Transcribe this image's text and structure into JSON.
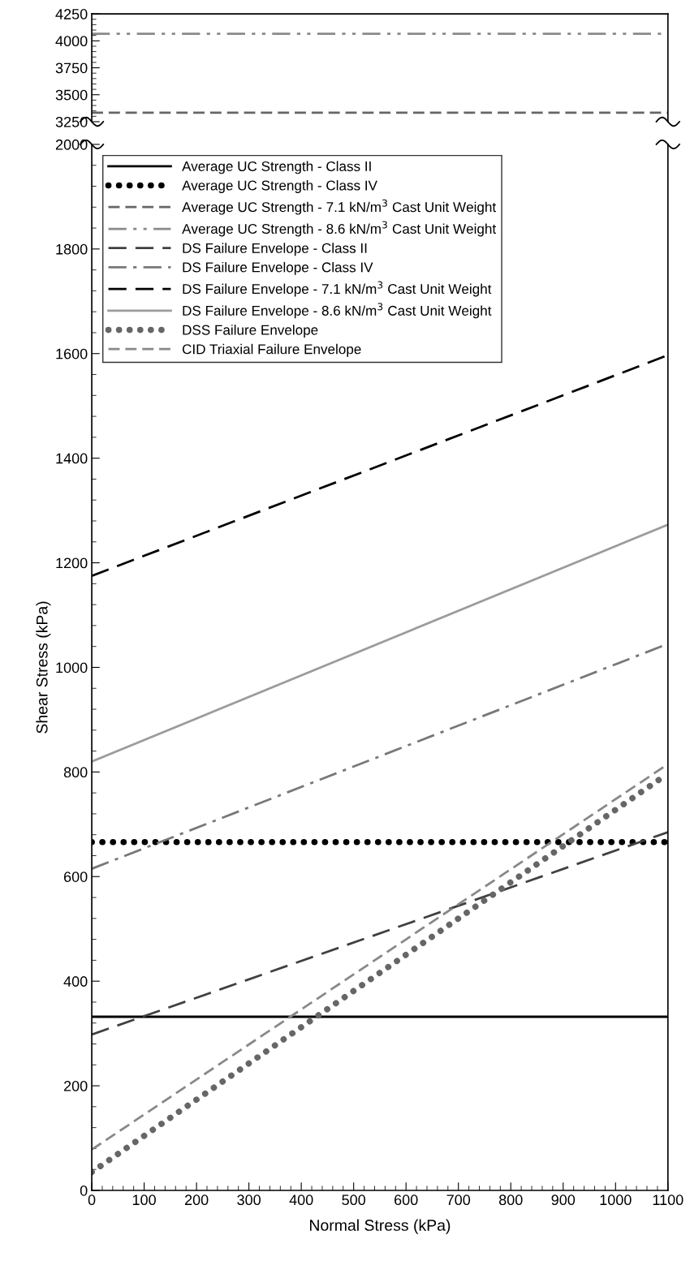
{
  "chart_data": [
    {
      "type": "line",
      "xlim": [
        0,
        1100
      ],
      "ylim": [
        3250,
        4250
      ],
      "yticks": [
        3250,
        3500,
        3750,
        4000,
        4250
      ],
      "tick_labels": "y",
      "legend": "bottom",
      "grid": false,
      "series": [
        {
          "name": "Average UC Strength - 7.1 kN/m$^{3}$ Cast Unit Weight",
          "color": "#666666",
          "line_style": "dashed",
          "x": [
            0,
            1100
          ],
          "values": [
            3333,
            3333
          ]
        },
        {
          "name": "Average UC Strength - 8.6 kN/m$^{3}$ Cast Unit Weight",
          "color": "#8a8a8a",
          "line_style": "dashdotdot",
          "x": [
            0,
            1100
          ],
          "values": [
            4065,
            4065
          ]
        }
      ]
    },
    {
      "type": "line",
      "xlabel": "Normal Stress (kPa)",
      "ylabel": "Shear Stress (kPa)",
      "xlim": [
        0,
        1100
      ],
      "xticks": [
        0,
        100,
        200,
        300,
        400,
        500,
        600,
        700,
        800,
        900,
        1000,
        1100
      ],
      "ylim": [
        0,
        2000
      ],
      "yticks": [
        0,
        200,
        400,
        600,
        800,
        1000,
        1200,
        1400,
        1600,
        1800,
        2000
      ],
      "legend": "top left",
      "grid": false,
      "series": [
        {
          "name": "Average UC Strength - Class II",
          "color": "#000000",
          "line_style": "solid",
          "x": [
            0,
            1100
          ],
          "values": [
            332,
            332
          ]
        },
        {
          "name": "Average UC Strength - Class IV",
          "color": "#000000",
          "line_style": "dotted",
          "x": [
            0,
            1100
          ],
          "values": [
            666,
            666
          ]
        },
        {
          "name": "DS Failure Envelope - Class II",
          "color": "#404040",
          "line_style": "longdashed",
          "x": [
            0,
            1100
          ],
          "values": [
            298,
            685
          ]
        },
        {
          "name": "DS Failure Envelope - Class IV",
          "color": "#787878",
          "line_style": "dashdot",
          "x": [
            0,
            1100
          ],
          "values": [
            615,
            1045
          ]
        },
        {
          "name": "DS Failure Envelope - 7.1 kN/m$^{3}$ Cast Unit Weight",
          "color": "#000000",
          "line_style": "longdashed",
          "x": [
            0,
            1100
          ],
          "values": [
            1175,
            1597
          ]
        },
        {
          "name": "DS Failure Envelope - 8.6 kN/m$^{3}$ Cast Unit Weight",
          "color": "#9c9c9c",
          "line_style": "solid",
          "x": [
            0,
            1100
          ],
          "values": [
            820,
            1273
          ]
        },
        {
          "name": "DSS Failure Envelope",
          "color": "#666666",
          "line_style": "dotted",
          "x": [
            0,
            1090
          ],
          "values": [
            35,
            790
          ]
        },
        {
          "name": "CID Triaxial Failure Envelope",
          "color": "#888888",
          "line_style": "dashed",
          "x": [
            0,
            1100
          ],
          "values": [
            78,
            815
          ]
        }
      ]
    }
  ]
}
